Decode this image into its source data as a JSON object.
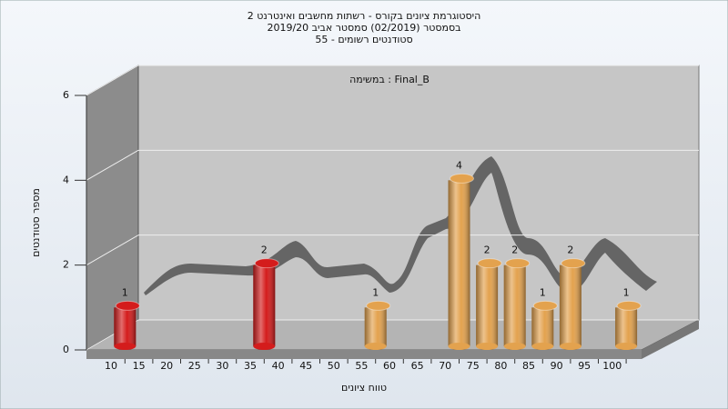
{
  "chart_data": {
    "type": "bar",
    "title": [
      "היסטוגרמת ציונים בקורס - רשתות מחשבים ואינטרנט 2",
      "בסמסטר  (02/2019)  סמסטר אביב 2019/20",
      "סטודנטים רשומים - 55"
    ],
    "annotation": "במשימה : Final_B",
    "xlabel": "טווח ציונים",
    "ylabel": "מספר סטודנטים",
    "categories": [
      "10",
      "15",
      "20",
      "25",
      "30",
      "35",
      "40",
      "45",
      "50",
      "55",
      "60",
      "65",
      "70",
      "75",
      "80",
      "85",
      "90",
      "95",
      "100"
    ],
    "values": [
      1,
      0,
      0,
      0,
      0,
      2,
      0,
      0,
      0,
      1,
      0,
      0,
      4,
      2,
      2,
      1,
      2,
      0,
      1
    ],
    "colors": [
      "#d41c1c",
      "#e3a24e",
      "#e3a24e",
      "#e3a24e",
      "#e3a24e",
      "#d41c1c",
      "#e3a24e",
      "#e3a24e",
      "#e3a24e",
      "#e3a24e",
      "#e3a24e",
      "#e3a24e",
      "#e3a24e",
      "#e3a24e",
      "#e3a24e",
      "#e3a24e",
      "#e3a24e",
      "#e3a24e",
      "#e3a24e"
    ],
    "ylim": [
      0,
      6
    ],
    "yticks": [
      0,
      2,
      4,
      6
    ],
    "grid": true
  }
}
